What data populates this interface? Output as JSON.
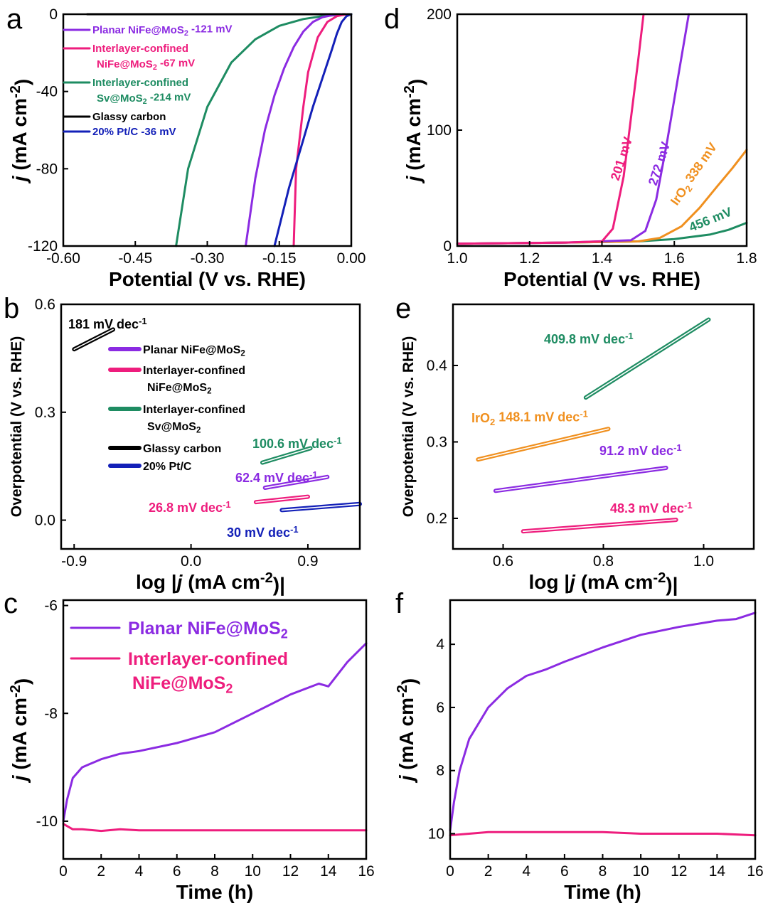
{
  "colors": {
    "purple": "#8b2be2",
    "pink": "#ee1d7d",
    "green": "#1e8c62",
    "black": "#000000",
    "blue": "#1320b8",
    "orange": "#f0901f"
  },
  "chart_data": [
    {
      "panel": "a",
      "type": "line",
      "xlabel": "Potential (V vs. RHE)",
      "ylabel": "j (mA cm-2)",
      "xlim": [
        -0.6,
        0.0
      ],
      "ylim": [
        -120,
        0
      ],
      "xticks": [
        "-0.60",
        "-0.45",
        "-0.30",
        "-0.15",
        "0.00"
      ],
      "yticks": [
        "0",
        "-40",
        "-80",
        "-120"
      ],
      "legend": [
        {
          "text": "Planar NiFe@MoS2 -121 mV",
          "color": "purple"
        },
        {
          "text": "Interlayer-confined NiFe@MoS2 -67 mV",
          "color": "pink"
        },
        {
          "text": "Interlayer-confined Sv@MoS2 -214 mV",
          "color": "green"
        },
        {
          "text": "Glassy carbon",
          "color": "black"
        },
        {
          "text": "20% Pt/C -36 mV",
          "color": "blue"
        }
      ],
      "series": [
        {
          "color": "black",
          "x": [
            -0.55,
            -0.3,
            -0.1,
            0.0
          ],
          "y": [
            0,
            0,
            0,
            0
          ]
        },
        {
          "color": "green",
          "x": [
            -0.365,
            -0.34,
            -0.3,
            -0.25,
            -0.2,
            -0.15,
            -0.1,
            -0.06,
            -0.03,
            0.0
          ],
          "y": [
            -120,
            -80,
            -48,
            -25,
            -13,
            -6,
            -2.5,
            -1,
            -0.4,
            0
          ]
        },
        {
          "color": "purple",
          "x": [
            -0.22,
            -0.2,
            -0.18,
            -0.16,
            -0.14,
            -0.12,
            -0.1,
            -0.08,
            -0.06,
            -0.04,
            -0.02
          ],
          "y": [
            -120,
            -85,
            -60,
            -42,
            -28,
            -17,
            -9,
            -4,
            -1.5,
            -0.5,
            0
          ]
        },
        {
          "color": "pink",
          "x": [
            -0.12,
            -0.115,
            -0.1,
            -0.09,
            -0.07,
            -0.05,
            -0.03,
            -0.01
          ],
          "y": [
            -120,
            -80,
            -48,
            -30,
            -12,
            -4,
            -1,
            0
          ]
        },
        {
          "color": "blue",
          "x": [
            -0.16,
            -0.13,
            -0.1,
            -0.08,
            -0.06,
            -0.04,
            -0.03,
            -0.02,
            -0.01,
            0.0
          ],
          "y": [
            -120,
            -90,
            -65,
            -48,
            -33,
            -18,
            -10,
            -4,
            -1,
            0
          ]
        }
      ]
    },
    {
      "panel": "d",
      "type": "line",
      "xlabel": "Potential (V vs. RHE)",
      "ylabel": "j (mA cm-2)",
      "xlim": [
        1.0,
        1.8
      ],
      "ylim": [
        0,
        200
      ],
      "xticks": [
        "1.0",
        "1.2",
        "1.4",
        "1.6",
        "1.8"
      ],
      "yticks": [
        "0",
        "100",
        "200"
      ],
      "annotations": [
        {
          "text": "201 mV",
          "color": "pink"
        },
        {
          "text": "272 mV",
          "color": "purple"
        },
        {
          "text": "IrO2 338 mV",
          "color": "orange"
        },
        {
          "text": "456 mV",
          "color": "green"
        }
      ],
      "series": [
        {
          "color": "green",
          "x": [
            1.0,
            1.3,
            1.5,
            1.6,
            1.7,
            1.75,
            1.8
          ],
          "y": [
            2,
            3,
            4,
            6,
            10,
            14,
            20
          ]
        },
        {
          "color": "orange",
          "x": [
            1.0,
            1.3,
            1.5,
            1.56,
            1.62,
            1.67,
            1.72,
            1.76,
            1.8
          ],
          "y": [
            2,
            3,
            4,
            7,
            17,
            33,
            52,
            67,
            83
          ]
        },
        {
          "color": "purple",
          "x": [
            1.0,
            1.3,
            1.48,
            1.52,
            1.55,
            1.58,
            1.61,
            1.64
          ],
          "y": [
            2,
            3,
            5,
            13,
            40,
            90,
            145,
            200
          ]
        },
        {
          "color": "pink",
          "x": [
            1.0,
            1.3,
            1.4,
            1.43,
            1.46,
            1.48,
            1.5,
            1.515
          ],
          "y": [
            2,
            3,
            4,
            15,
            60,
            110,
            160,
            200
          ]
        }
      ]
    },
    {
      "panel": "b",
      "type": "line",
      "xlabel": "log |j (mA cm-2)|",
      "ylabel": "Overpotential (V vs. RHE)",
      "xlim": [
        -1.0,
        1.3
      ],
      "ylim": [
        -0.08,
        0.6
      ],
      "xticks": [
        "-0.9",
        "0.0",
        "0.9"
      ],
      "yticks": [
        "0.0",
        "0.3",
        "0.6"
      ],
      "legend": [
        {
          "text": "Planar NiFe@MoS2",
          "color": "purple"
        },
        {
          "text": "Interlayer-confined NiFe@MoS2",
          "color": "pink"
        },
        {
          "text": "Interlayer-confined Sv@MoS2",
          "color": "green"
        },
        {
          "text": "Glassy carbon",
          "color": "black"
        },
        {
          "text": "20% Pt/C",
          "color": "blue"
        }
      ],
      "annotations": [
        {
          "text": "181 mV dec-1",
          "color": "black"
        },
        {
          "text": "100.6 mV dec-1",
          "color": "green"
        },
        {
          "text": "62.4 mV dec-1",
          "color": "purple"
        },
        {
          "text": "26.8 mV dec-1",
          "color": "pink"
        },
        {
          "text": "30 mV dec-1",
          "color": "blue"
        }
      ],
      "series": [
        {
          "color": "black",
          "x": [
            -0.9,
            -0.6
          ],
          "y": [
            0.475,
            0.53
          ]
        },
        {
          "color": "green",
          "x": [
            0.55,
            0.92
          ],
          "y": [
            0.16,
            0.2
          ]
        },
        {
          "color": "purple",
          "x": [
            0.57,
            1.05
          ],
          "y": [
            0.09,
            0.12
          ]
        },
        {
          "color": "pink",
          "x": [
            0.5,
            0.9
          ],
          "y": [
            0.05,
            0.065
          ]
        },
        {
          "color": "blue",
          "x": [
            0.7,
            1.3
          ],
          "y": [
            0.028,
            0.045
          ]
        }
      ]
    },
    {
      "panel": "e",
      "type": "line",
      "xlabel": "log |j (mA cm-2)|",
      "ylabel": "Overpotential (V vs. RHE)",
      "xlim": [
        0.5,
        1.1
      ],
      "ylim": [
        0.16,
        0.48
      ],
      "xticks": [
        "0.6",
        "0.8",
        "1.0"
      ],
      "yticks": [
        "0.2",
        "0.3",
        "0.4"
      ],
      "annotations": [
        {
          "text": "409.8 mV dec-1",
          "color": "green"
        },
        {
          "text": "IrO2 148.1 mV dec-1",
          "color": "orange"
        },
        {
          "text": "91.2 mV dec-1",
          "color": "purple"
        },
        {
          "text": "48.3 mV dec-1",
          "color": "pink"
        }
      ],
      "series": [
        {
          "color": "green",
          "x": [
            0.765,
            1.01
          ],
          "y": [
            0.358,
            0.46
          ]
        },
        {
          "color": "orange",
          "x": [
            0.55,
            0.81
          ],
          "y": [
            0.277,
            0.317
          ]
        },
        {
          "color": "purple",
          "x": [
            0.585,
            0.925
          ],
          "y": [
            0.236,
            0.266
          ]
        },
        {
          "color": "pink",
          "x": [
            0.64,
            0.945
          ],
          "y": [
            0.183,
            0.198
          ]
        }
      ]
    },
    {
      "panel": "c",
      "type": "line",
      "xlabel": "Time (h)",
      "ylabel": "j (mA cm-2)",
      "xlim": [
        0,
        16
      ],
      "ylim": [
        -10.7,
        -5.9
      ],
      "xticks": [
        "0",
        "2",
        "4",
        "6",
        "8",
        "10",
        "12",
        "14",
        "16"
      ],
      "yticks": [
        "-6",
        "-8",
        "-10"
      ],
      "legend": [
        {
          "text": "Planar NiFe@MoS2",
          "color": "purple"
        },
        {
          "text": "Interlayer-confined NiFe@MoS2",
          "color": "pink"
        }
      ],
      "series": [
        {
          "color": "purple",
          "x": [
            0,
            0.2,
            0.5,
            1,
            2,
            3,
            4,
            6,
            8,
            10,
            12,
            13.5,
            14,
            15,
            16
          ],
          "y": [
            -10.0,
            -9.6,
            -9.2,
            -9.0,
            -8.85,
            -8.75,
            -8.7,
            -8.55,
            -8.35,
            -8.0,
            -7.65,
            -7.45,
            -7.5,
            -7.05,
            -6.7
          ]
        },
        {
          "color": "pink",
          "x": [
            0,
            0.5,
            1,
            2,
            3,
            4,
            6,
            8,
            10,
            12,
            14,
            16
          ],
          "y": [
            -10.05,
            -10.15,
            -10.15,
            -10.18,
            -10.15,
            -10.17,
            -10.17,
            -10.17,
            -10.17,
            -10.17,
            -10.17,
            -10.17
          ]
        }
      ]
    },
    {
      "panel": "f",
      "type": "line",
      "xlabel": "Time (h)",
      "ylabel": "j (mA cm-2)",
      "xlim": [
        0,
        16
      ],
      "ylim": [
        2.6,
        10.8
      ],
      "y_inverted": true,
      "xticks": [
        "0",
        "2",
        "4",
        "6",
        "8",
        "10",
        "12",
        "14",
        "16"
      ],
      "yticks": [
        "4",
        "6",
        "8",
        "10"
      ],
      "series": [
        {
          "color": "purple",
          "x": [
            0,
            0.2,
            0.5,
            1,
            1.5,
            2,
            3,
            4,
            5,
            6,
            8,
            10,
            12,
            14,
            15,
            16
          ],
          "y": [
            9.9,
            9.0,
            8.0,
            7.0,
            6.5,
            6.0,
            5.4,
            5.0,
            4.8,
            4.55,
            4.1,
            3.7,
            3.45,
            3.25,
            3.2,
            3.0
          ]
        },
        {
          "color": "pink",
          "x": [
            0,
            1,
            2,
            4,
            6,
            8,
            10,
            12,
            14,
            16
          ],
          "y": [
            10.05,
            10.0,
            9.95,
            9.95,
            9.95,
            9.95,
            10.0,
            10.0,
            10.0,
            10.05
          ]
        }
      ]
    }
  ]
}
